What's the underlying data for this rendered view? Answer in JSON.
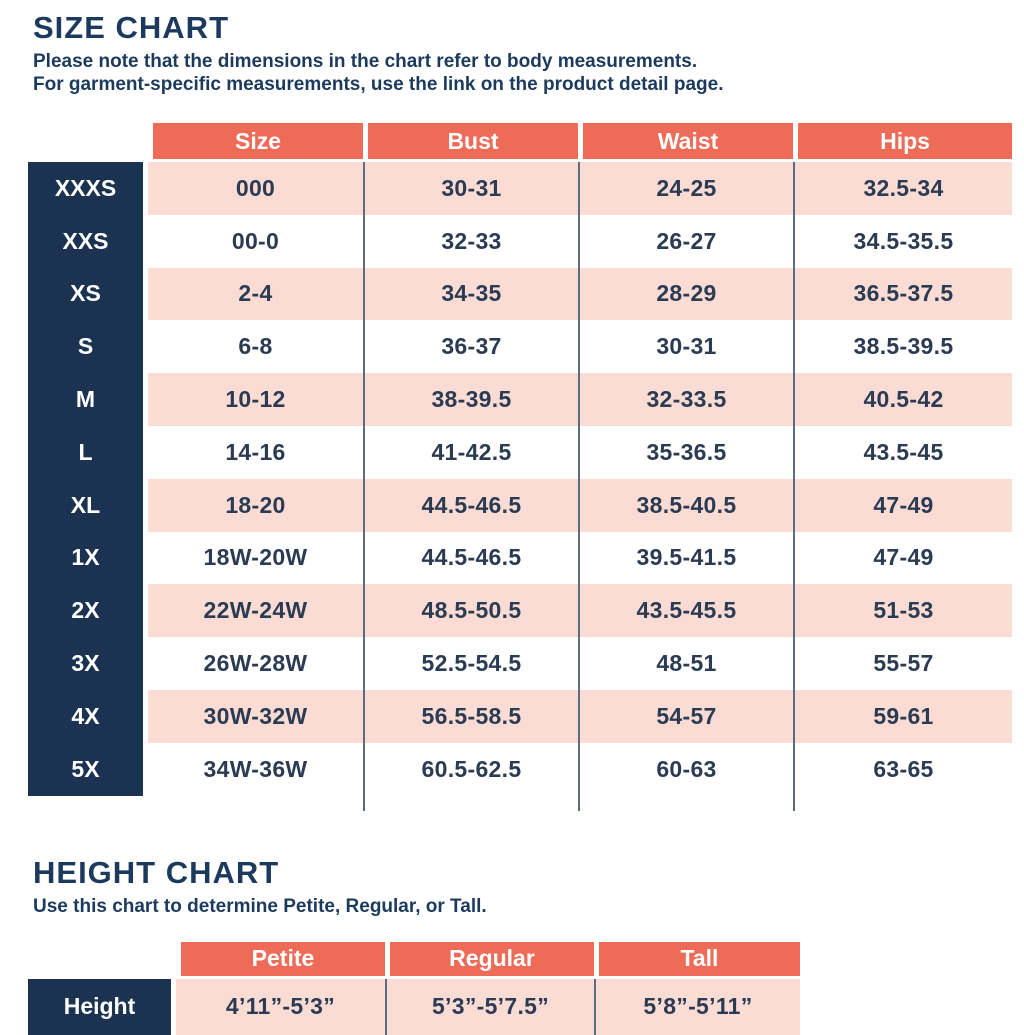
{
  "colors": {
    "coral": "#ED6B57",
    "pink": "#FBDCD5",
    "navy": "#1B3350",
    "navy_text_dark": "#1C3A5E",
    "text_navy": "#2B3B52",
    "separator": "#5C6B7E"
  },
  "size_chart": {
    "title": "SIZE CHART",
    "subtitle_line1": "Please note that the dimensions in the chart refer to body measurements.",
    "subtitle_line2": "For garment-specific measurements, use the link on the product detail page.",
    "columns": [
      "Size",
      "Bust",
      "Waist",
      "Hips"
    ],
    "rows": [
      {
        "label": "XXXS",
        "values": [
          "000",
          "30-31",
          "24-25",
          "32.5-34"
        ]
      },
      {
        "label": "XXS",
        "values": [
          "00-0",
          "32-33",
          "26-27",
          "34.5-35.5"
        ]
      },
      {
        "label": "XS",
        "values": [
          "2-4",
          "34-35",
          "28-29",
          "36.5-37.5"
        ]
      },
      {
        "label": "S",
        "values": [
          "6-8",
          "36-37",
          "30-31",
          "38.5-39.5"
        ]
      },
      {
        "label": "M",
        "values": [
          "10-12",
          "38-39.5",
          "32-33.5",
          "40.5-42"
        ]
      },
      {
        "label": "L",
        "values": [
          "14-16",
          "41-42.5",
          "35-36.5",
          "43.5-45"
        ]
      },
      {
        "label": "XL",
        "values": [
          "18-20",
          "44.5-46.5",
          "38.5-40.5",
          "47-49"
        ]
      },
      {
        "label": "1X",
        "values": [
          "18W-20W",
          "44.5-46.5",
          "39.5-41.5",
          "47-49"
        ]
      },
      {
        "label": "2X",
        "values": [
          "22W-24W",
          "48.5-50.5",
          "43.5-45.5",
          "51-53"
        ]
      },
      {
        "label": "3X",
        "values": [
          "26W-28W",
          "52.5-54.5",
          "48-51",
          "55-57"
        ]
      },
      {
        "label": "4X",
        "values": [
          "30W-32W",
          "56.5-58.5",
          "54-57",
          "59-61"
        ]
      },
      {
        "label": "5X",
        "values": [
          "34W-36W",
          "60.5-62.5",
          "60-63",
          "63-65"
        ]
      }
    ]
  },
  "height_chart": {
    "title": "HEIGHT CHART",
    "subtitle": "Use this chart to determine Petite, Regular, or Tall.",
    "columns": [
      "Petite",
      "Regular",
      "Tall"
    ],
    "row_label": "Height",
    "values": [
      "4’11”-5’3”",
      "5’3”-5’7.5”",
      "5’8”-5’11”"
    ]
  }
}
